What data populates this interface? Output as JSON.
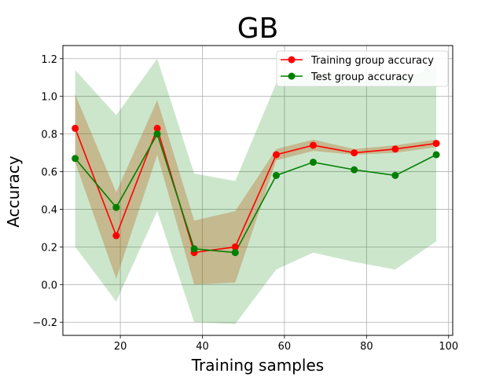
{
  "chart_data": {
    "type": "line",
    "title": "GB",
    "xlabel": "Training samples",
    "ylabel": "Accuracy",
    "xlim": [
      6,
      101
    ],
    "ylim": [
      -0.27,
      1.27
    ],
    "x_ticks": [
      20,
      40,
      60,
      80,
      100
    ],
    "y_ticks": [
      -0.2,
      0.0,
      0.2,
      0.4,
      0.6,
      0.8,
      1.0,
      1.2
    ],
    "x_tick_labels": [
      "20",
      "40",
      "60",
      "80",
      "100"
    ],
    "y_tick_labels": [
      "−0.2",
      "0.0",
      "0.2",
      "0.4",
      "0.6",
      "0.8",
      "1.0",
      "1.2"
    ],
    "grid": true,
    "legend_position": "top-right",
    "x": [
      9,
      19,
      29,
      38,
      48,
      58,
      67,
      77,
      87,
      97
    ],
    "series": [
      {
        "name": "Training group accuracy",
        "color": "#ff0000",
        "band_color": "#b5651d",
        "values": [
          0.83,
          0.26,
          0.83,
          0.17,
          0.2,
          0.69,
          0.74,
          0.7,
          0.72,
          0.75
        ],
        "lower": [
          0.65,
          0.03,
          0.69,
          0.0,
          0.01,
          0.66,
          0.71,
          0.69,
          0.7,
          0.73
        ],
        "upper": [
          1.01,
          0.49,
          0.98,
          0.34,
          0.39,
          0.72,
          0.77,
          0.72,
          0.74,
          0.77
        ]
      },
      {
        "name": "Test group accuracy",
        "color": "#008000",
        "band_color": "#008000",
        "values": [
          0.67,
          0.41,
          0.8,
          0.19,
          0.17,
          0.58,
          0.65,
          0.61,
          0.58,
          0.69
        ],
        "lower": [
          0.2,
          -0.09,
          0.39,
          -0.2,
          -0.21,
          0.08,
          0.17,
          0.12,
          0.08,
          0.23
        ],
        "upper": [
          1.14,
          0.9,
          1.2,
          0.59,
          0.55,
          1.07,
          1.13,
          1.1,
          1.08,
          1.16
        ]
      }
    ]
  }
}
